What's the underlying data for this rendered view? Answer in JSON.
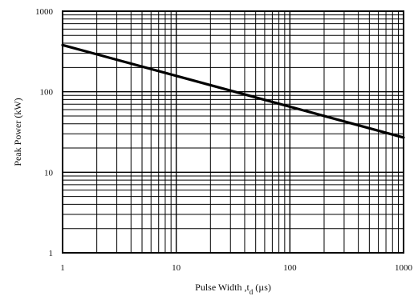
{
  "chart_data": {
    "type": "line",
    "title": "",
    "xlabel": "Pulse Width ,t",
    "xlabel_sub": "d",
    "xlabel_unit": " (µs)",
    "ylabel": "Peak Power (kW)",
    "xscale": "log",
    "yscale": "log",
    "xlim": [
      1,
      1000
    ],
    "ylim": [
      1,
      1000
    ],
    "grid": true,
    "legend": "none",
    "x_ticks": [
      1,
      10,
      100,
      1000
    ],
    "x_tick_labels": [
      "1",
      "10",
      "100",
      "1000"
    ],
    "y_ticks": [
      1,
      10,
      100,
      1000
    ],
    "y_tick_labels": [
      "1",
      "10",
      "100",
      "1000"
    ],
    "series": [
      {
        "x": [
          1,
          1000
        ],
        "y": [
          380,
          27
        ]
      }
    ],
    "colors": {
      "grid": "#000000",
      "line": "#000000"
    }
  }
}
